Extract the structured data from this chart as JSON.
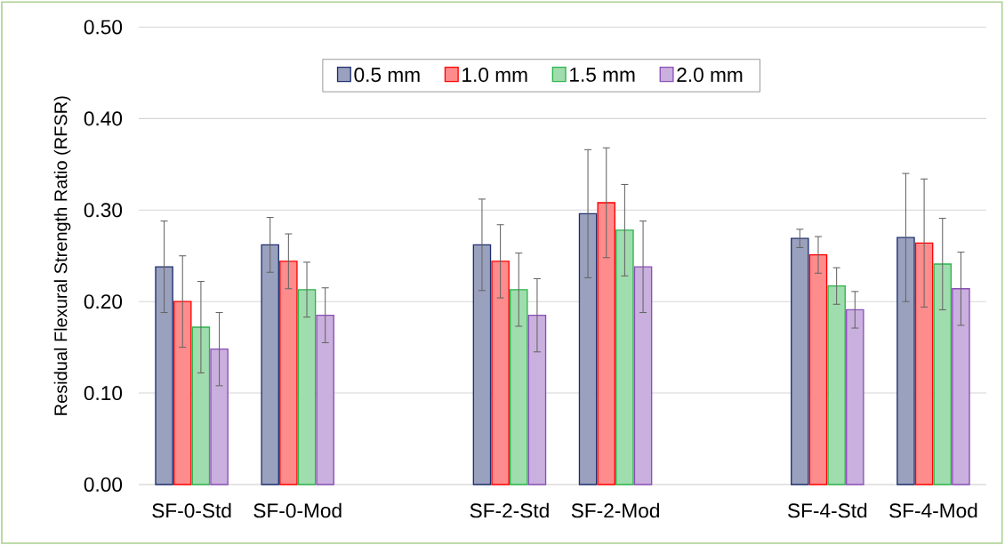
{
  "chart_data": {
    "type": "bar",
    "ylabel": "Residual Flexural Strength Ratio (RFSR)",
    "categories": [
      "SF-0-Std",
      "SF-0-Mod",
      null,
      "SF-2-Std",
      "SF-2-Mod",
      null,
      "SF-4-Std",
      "SF-4-Mod"
    ],
    "series": [
      {
        "name": "0.5 mm",
        "color": "#1f2f6e",
        "values": [
          0.238,
          0.262,
          null,
          0.262,
          0.296,
          null,
          0.269,
          0.27
        ],
        "errors": [
          0.05,
          0.03,
          null,
          0.05,
          0.07,
          null,
          0.01,
          0.07
        ]
      },
      {
        "name": "1.0 mm",
        "color": "#ff0000",
        "values": [
          0.2,
          0.244,
          null,
          0.244,
          0.308,
          null,
          0.251,
          0.264
        ],
        "errors": [
          0.05,
          0.03,
          null,
          0.04,
          0.06,
          null,
          0.02,
          0.07
        ]
      },
      {
        "name": "1.5 mm",
        "color": "#2db34a",
        "values": [
          0.172,
          0.213,
          null,
          0.213,
          0.278,
          null,
          0.217,
          0.241
        ],
        "errors": [
          0.05,
          0.03,
          null,
          0.04,
          0.05,
          null,
          0.02,
          0.05
        ]
      },
      {
        "name": "2.0 mm",
        "color": "#8a4fb5",
        "values": [
          0.148,
          0.185,
          null,
          0.185,
          0.238,
          null,
          0.191,
          0.214
        ],
        "errors": [
          0.04,
          0.03,
          null,
          0.04,
          0.05,
          null,
          0.02,
          0.04
        ]
      }
    ],
    "ylim": [
      0,
      0.5
    ],
    "yticks": [
      {
        "value": 0,
        "label": "0.00"
      },
      {
        "value": 0.1,
        "label": "0.10"
      },
      {
        "value": 0.2,
        "label": "0.20"
      },
      {
        "value": 0.3,
        "label": "0.30"
      },
      {
        "value": 0.4,
        "label": "0.40"
      },
      {
        "value": 0.5,
        "label": "0.50"
      }
    ],
    "grid": "y",
    "legend": "top"
  }
}
